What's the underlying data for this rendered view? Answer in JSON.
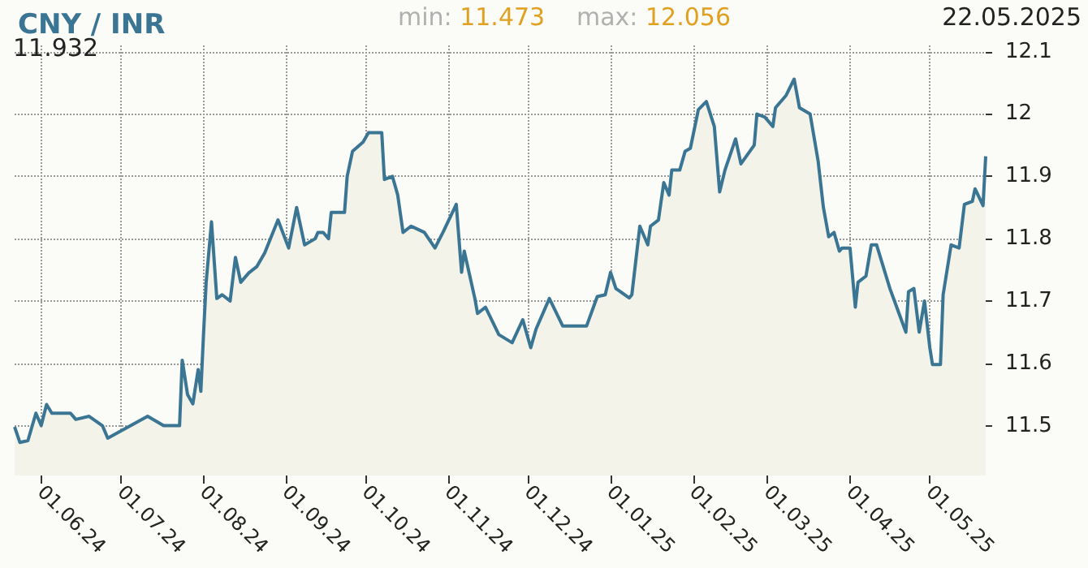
{
  "chart_data": {
    "type": "area",
    "title": "CNY / INR",
    "annotations": [
      "11.932",
      "min: 11.473",
      "max: 12.056",
      "22.05.2025"
    ],
    "x": [
      "2024-05-22",
      "2024-05-24",
      "2024-05-27",
      "2024-05-30",
      "2024-06-01",
      "2024-06-03",
      "2024-06-05",
      "2024-06-12",
      "2024-06-14",
      "2024-06-19",
      "2024-06-24",
      "2024-06-26",
      "2024-07-11",
      "2024-07-17",
      "2024-07-23",
      "2024-07-24",
      "2024-07-26",
      "2024-07-28",
      "2024-07-30",
      "2024-07-31",
      "2024-08-01",
      "2024-08-02",
      "2024-08-04",
      "2024-08-06",
      "2024-08-08",
      "2024-08-11",
      "2024-08-13",
      "2024-08-15",
      "2024-08-18",
      "2024-08-21",
      "2024-08-24",
      "2024-08-29",
      "2024-09-02",
      "2024-09-05",
      "2024-09-08",
      "2024-09-12",
      "2024-09-13",
      "2024-09-15",
      "2024-09-17",
      "2024-09-18",
      "2024-09-23",
      "2024-09-24",
      "2024-09-26",
      "2024-09-30",
      "2024-10-02",
      "2024-10-07",
      "2024-10-08",
      "2024-10-11",
      "2024-10-13",
      "2024-10-15",
      "2024-10-18",
      "2024-10-23",
      "2024-10-27",
      "2024-10-30",
      "2024-11-04",
      "2024-11-06",
      "2024-11-07",
      "2024-11-11",
      "2024-11-12",
      "2024-11-15",
      "2024-11-20",
      "2024-11-25",
      "2024-11-29",
      "2024-12-02",
      "2024-12-04",
      "2024-12-09",
      "2024-12-14",
      "2024-12-18",
      "2024-12-23",
      "2024-12-27",
      "2024-12-30",
      "2025-01-01",
      "2025-01-03",
      "2025-01-08",
      "2025-01-09",
      "2025-01-12",
      "2025-01-15",
      "2025-01-16",
      "2025-01-19",
      "2025-01-21",
      "2025-01-23",
      "2025-01-24",
      "2025-01-27",
      "2025-01-29",
      "2025-01-31",
      "2025-02-03",
      "2025-02-06",
      "2025-02-09",
      "2025-02-11",
      "2025-02-13",
      "2025-02-17",
      "2025-02-19",
      "2025-02-24",
      "2025-02-25",
      "2025-02-28",
      "2025-03-03",
      "2025-03-04",
      "2025-03-08",
      "2025-03-11",
      "2025-03-13",
      "2025-03-17",
      "2025-03-20",
      "2025-03-22",
      "2025-03-24",
      "2025-03-26",
      "2025-03-28",
      "2025-03-29",
      "2025-04-01",
      "2025-04-03",
      "2025-04-04",
      "2025-04-07",
      "2025-04-09",
      "2025-04-11",
      "2025-04-16",
      "2025-04-19",
      "2025-04-22",
      "2025-04-23",
      "2025-04-25",
      "2025-04-27",
      "2025-04-29",
      "2025-05-01",
      "2025-05-02",
      "2025-05-05",
      "2025-05-06",
      "2025-05-09",
      "2025-05-12",
      "2025-05-14",
      "2025-05-17",
      "2025-05-18",
      "2025-05-21",
      "2025-05-22"
    ],
    "series": [
      {
        "color": "#3a7593",
        "values": [
          11.498,
          11.473,
          11.476,
          11.52,
          11.5,
          11.534,
          11.52,
          11.52,
          11.51,
          11.515,
          11.5,
          11.48,
          11.515,
          11.5,
          11.5,
          11.605,
          11.55,
          11.535,
          11.59,
          11.555,
          11.646,
          11.73,
          11.827,
          11.704,
          11.71,
          11.7,
          11.77,
          11.73,
          11.745,
          11.755,
          11.777,
          11.83,
          11.785,
          11.85,
          11.79,
          11.8,
          11.81,
          11.81,
          11.8,
          11.842,
          11.842,
          11.9,
          11.94,
          11.955,
          11.97,
          11.97,
          11.895,
          11.9,
          11.87,
          11.81,
          11.82,
          11.81,
          11.785,
          11.81,
          11.855,
          11.746,
          11.78,
          11.704,
          11.68,
          11.69,
          11.646,
          11.633,
          11.67,
          11.625,
          11.655,
          11.704,
          11.66,
          11.66,
          11.66,
          11.707,
          11.71,
          11.746,
          11.72,
          11.705,
          11.71,
          11.82,
          11.79,
          11.82,
          11.83,
          11.89,
          11.87,
          11.91,
          11.91,
          11.94,
          11.945,
          12.007,
          12.02,
          11.98,
          11.875,
          11.91,
          11.96,
          11.92,
          11.95,
          12.0,
          11.995,
          11.98,
          12.01,
          12.03,
          12.056,
          12.01,
          12.0,
          11.925,
          11.85,
          11.803,
          11.81,
          11.78,
          11.785,
          11.785,
          11.69,
          11.73,
          11.74,
          11.79,
          11.79,
          11.72,
          11.685,
          11.65,
          11.715,
          11.72,
          11.65,
          11.7,
          11.625,
          11.598,
          11.598,
          11.71,
          11.79,
          11.785,
          11.855,
          11.86,
          11.88,
          11.853,
          11.932
        ]
      }
    ],
    "xlim": [
      "2024-05-22",
      "2025-05-22"
    ],
    "xticks": [
      {
        "value": "2024-06-01",
        "label": "01.06.24"
      },
      {
        "value": "2024-07-01",
        "label": "01.07.24"
      },
      {
        "value": "2024-08-01",
        "label": "01.08.24"
      },
      {
        "value": "2024-09-01",
        "label": "01.09.24"
      },
      {
        "value": "2024-10-01",
        "label": "01.10.24"
      },
      {
        "value": "2024-11-01",
        "label": "01.11.24"
      },
      {
        "value": "2024-12-01",
        "label": "01.12.24"
      },
      {
        "value": "2025-01-01",
        "label": "01.01.25"
      },
      {
        "value": "2025-02-01",
        "label": "01.02.25"
      },
      {
        "value": "2025-03-01",
        "label": "01.03.25"
      },
      {
        "value": "2025-04-01",
        "label": "01.04.25"
      },
      {
        "value": "2025-05-01",
        "label": "01.05.25"
      }
    ],
    "ylim": [
      11.42,
      12.11
    ],
    "yticks": [
      11.5,
      11.6,
      11.7,
      11.8,
      11.9,
      12,
      12.1
    ],
    "grid": true,
    "marker": "none",
    "line_style": "solid"
  }
}
